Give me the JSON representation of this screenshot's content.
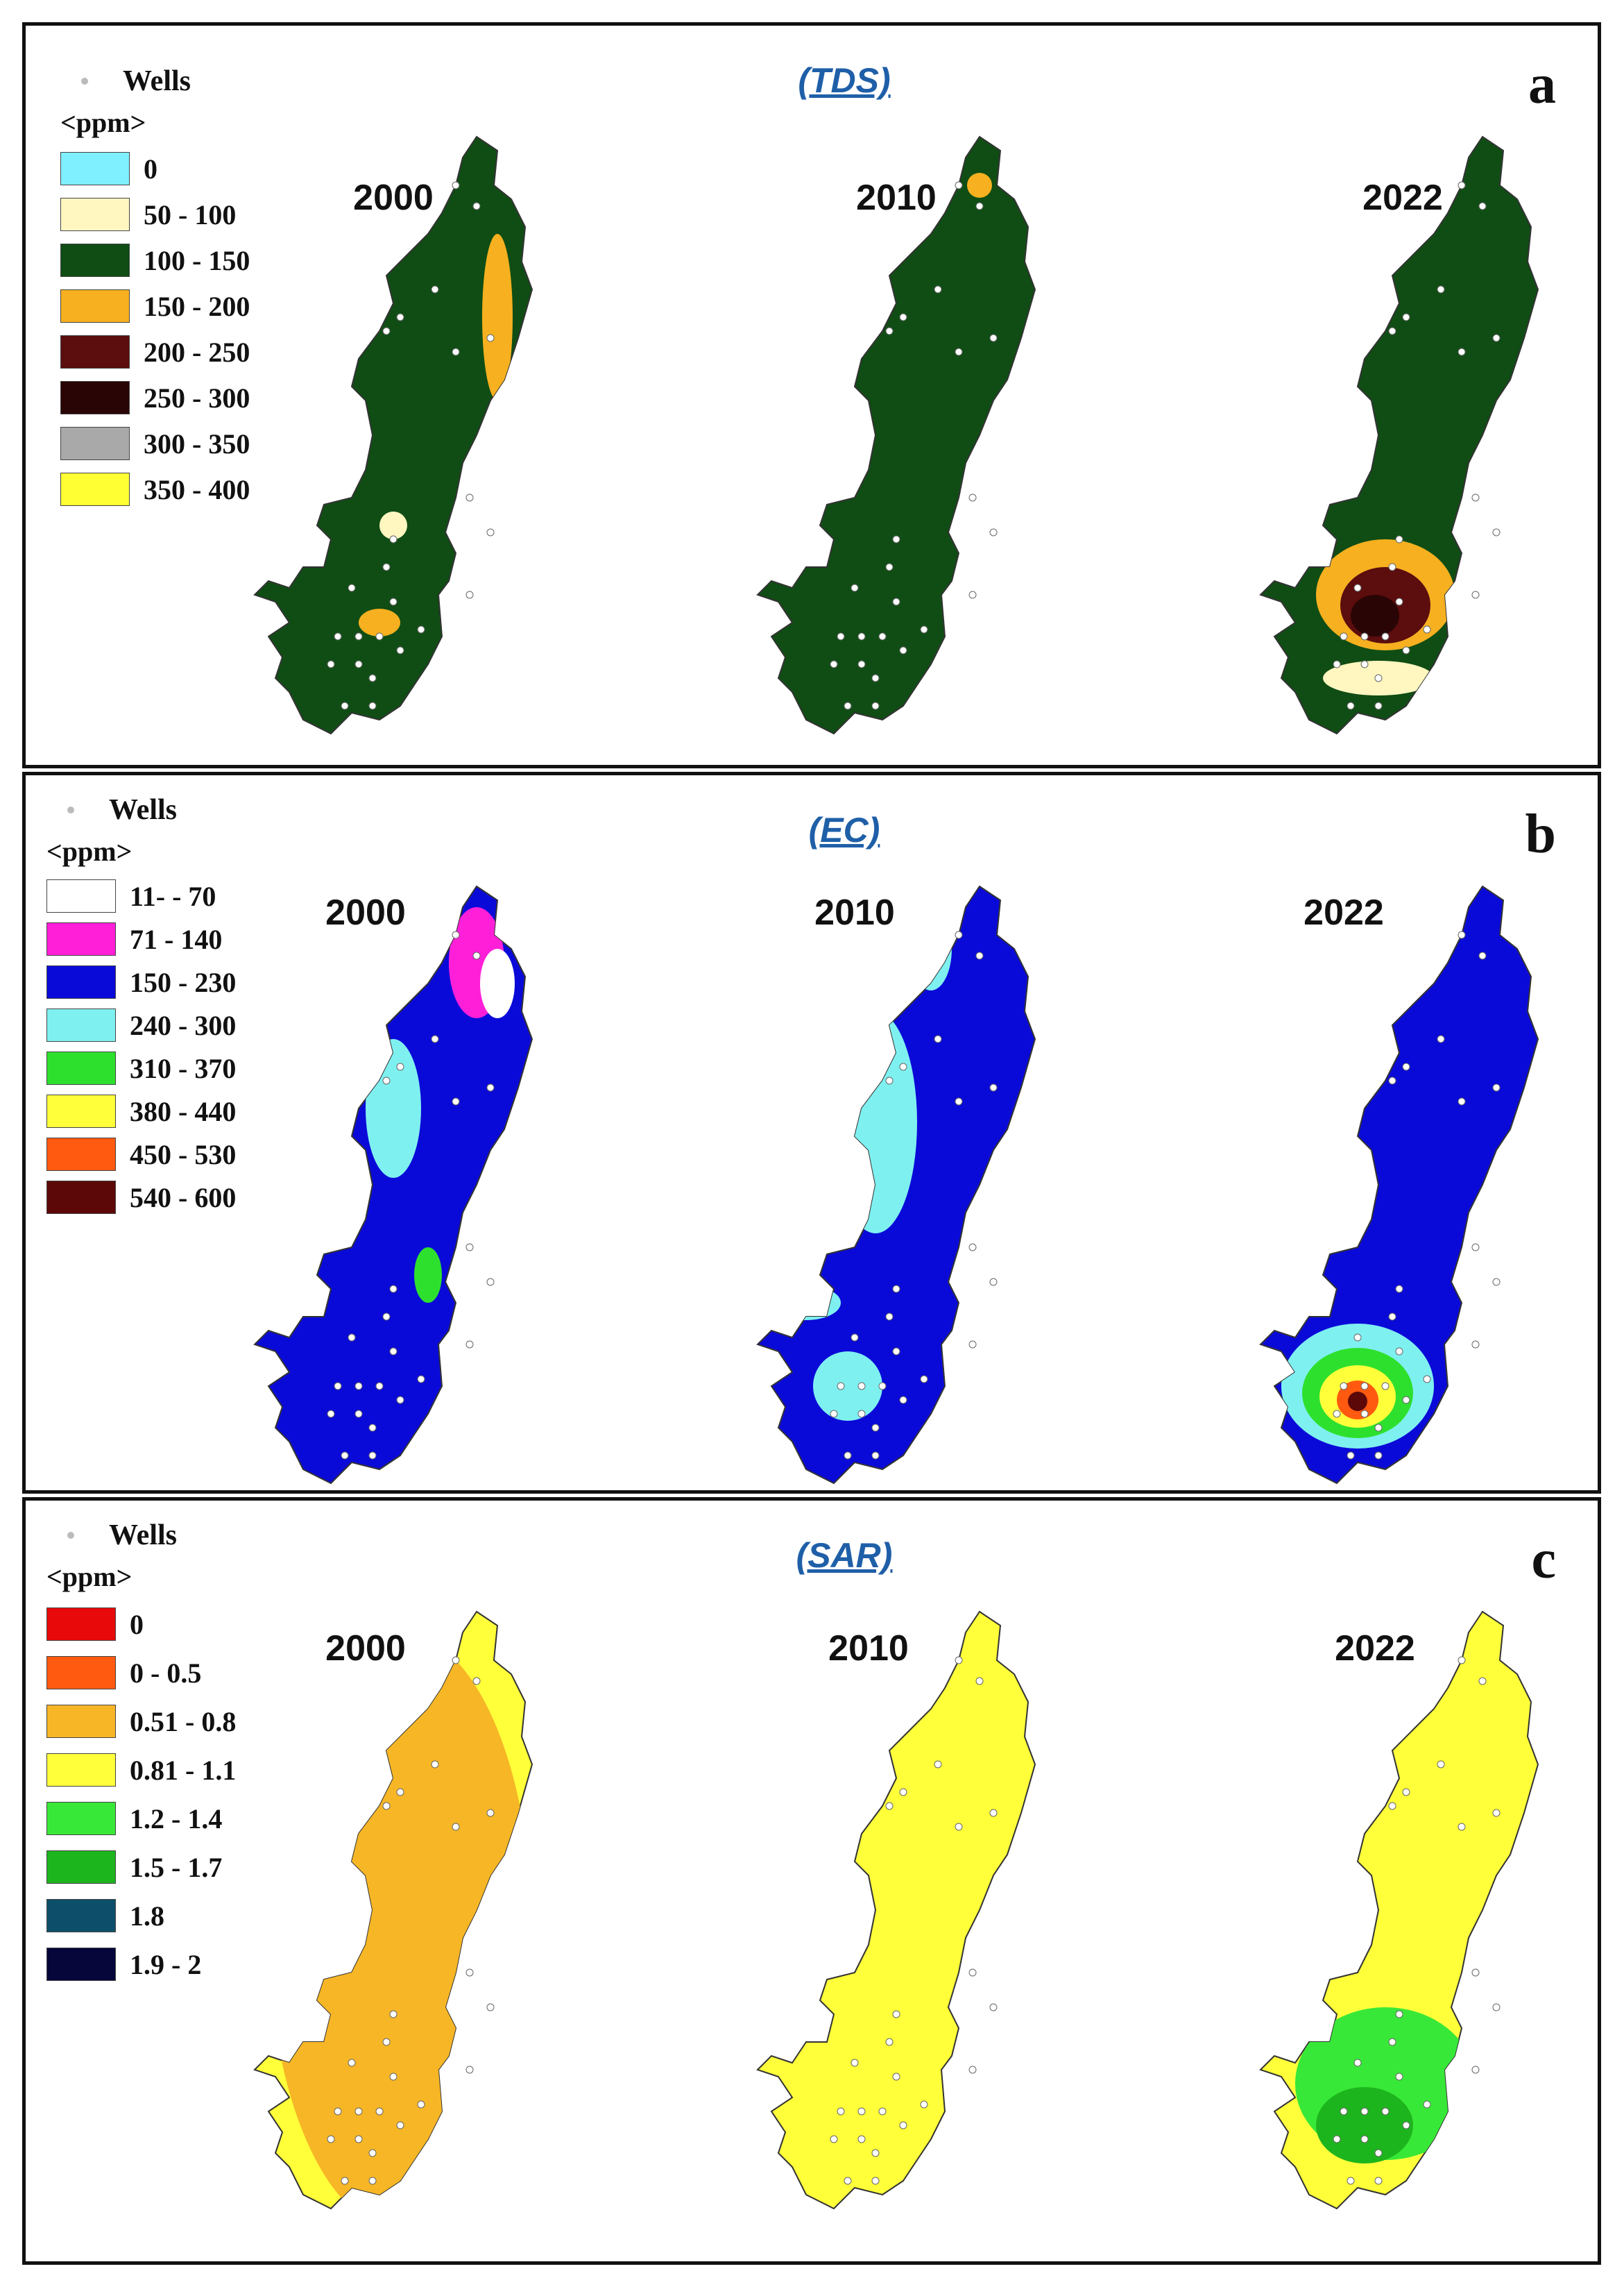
{
  "panels": [
    {
      "letter": "a",
      "parameter": "(TDS)",
      "wells_label": "Wells",
      "unit": "<ppm>",
      "legend": [
        {
          "label": "0",
          "color": "#7ff0ff"
        },
        {
          "label": "50 - 100",
          "color": "#fff6c0"
        },
        {
          "label": "100 - 150",
          "color": "#0f4d14"
        },
        {
          "label": "150 - 200",
          "color": "#f6b020"
        },
        {
          "label": "200 - 250",
          "color": "#5c0d0d"
        },
        {
          "label": "250 - 300",
          "color": "#2a0505"
        },
        {
          "label": "300 - 350",
          "color": "#a9a9a9"
        },
        {
          "label": "350 - 400",
          "color": "#ffff33"
        }
      ],
      "years": [
        "2000",
        "2010",
        "2022"
      ],
      "base_color": "#0f4d14"
    },
    {
      "letter": "b",
      "parameter": "(EC)",
      "wells_label": "Wells",
      "unit": "<ppm>",
      "legend": [
        {
          "label": "11- - 70",
          "color": "#ffffff"
        },
        {
          "label": "71 - 140",
          "color": "#ff1fd8"
        },
        {
          "label": "150 - 230",
          "color": "#0a0ad8"
        },
        {
          "label": "240 - 300",
          "color": "#7ff0f0"
        },
        {
          "label": "310 - 370",
          "color": "#2ee02e"
        },
        {
          "label": "380 - 440",
          "color": "#ffff3a"
        },
        {
          "label": "450 - 530",
          "color": "#ff5a10"
        },
        {
          "label": "540 - 600",
          "color": "#5c0808"
        }
      ],
      "years": [
        "2000",
        "2010",
        "2022"
      ],
      "base_color": "#0a0ad8"
    },
    {
      "letter": "c",
      "parameter": "(SAR)",
      "wells_label": "Wells",
      "unit": "<ppm>",
      "legend": [
        {
          "label": "0",
          "color": "#e80a0a"
        },
        {
          "label": "0 - 0.5",
          "color": "#ff5a10"
        },
        {
          "label": "0.51 - 0.8",
          "color": "#f6b626"
        },
        {
          "label": "0.81 - 1.1",
          "color": "#ffff3a"
        },
        {
          "label": "1.2 - 1.4",
          "color": "#38e838"
        },
        {
          "label": "1.5 - 1.7",
          "color": "#1db51d"
        },
        {
          "label": "1.8",
          "color": "#0d4f6a"
        },
        {
          "label": "1.9 - 2",
          "color": "#06063a"
        }
      ],
      "years": [
        "2000",
        "2010",
        "2022"
      ],
      "base_color": "#ffff3a"
    }
  ]
}
